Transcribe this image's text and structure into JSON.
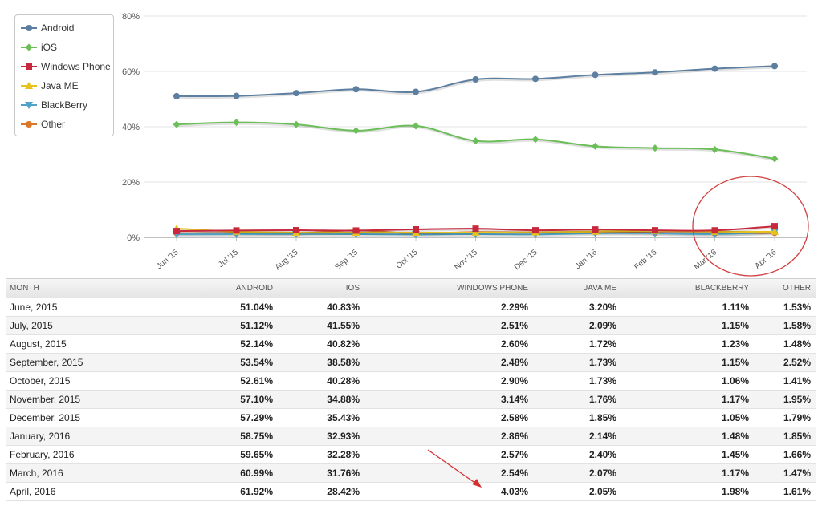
{
  "chart_data": {
    "type": "line",
    "title": "",
    "xlabel": "",
    "ylabel": "",
    "ylim": [
      0,
      80
    ],
    "y_ticks": [
      "0%",
      "20%",
      "40%",
      "60%",
      "80%"
    ],
    "categories": [
      "Jun '15",
      "Jul '15",
      "Aug '15",
      "Sep '15",
      "Oct '15",
      "Nov '15",
      "Dec '15",
      "Jan '16",
      "Feb '16",
      "Mar '16",
      "Apr '16"
    ],
    "grid": true,
    "legend_placement": "top-left",
    "series": [
      {
        "name": "Android",
        "color": "#5c7fa1",
        "marker": "circle",
        "values": [
          51.04,
          51.12,
          52.14,
          53.54,
          52.61,
          57.1,
          57.29,
          58.75,
          59.65,
          60.99,
          61.92
        ]
      },
      {
        "name": "iOS",
        "color": "#6cbf58",
        "marker": "diamond",
        "values": [
          40.83,
          41.55,
          40.82,
          38.58,
          40.28,
          34.88,
          35.43,
          32.93,
          32.28,
          31.76,
          28.42
        ]
      },
      {
        "name": "Windows Phone",
        "color": "#c8283c",
        "marker": "square",
        "values": [
          2.29,
          2.51,
          2.6,
          2.48,
          2.9,
          3.14,
          2.58,
          2.86,
          2.57,
          2.54,
          4.03
        ]
      },
      {
        "name": "Java ME",
        "color": "#e8c21e",
        "marker": "triangle",
        "values": [
          3.2,
          2.09,
          1.72,
          1.73,
          1.73,
          1.76,
          1.85,
          2.14,
          2.4,
          2.07,
          2.05
        ]
      },
      {
        "name": "BlackBerry",
        "color": "#4fa3c8",
        "marker": "triangle-down",
        "values": [
          1.11,
          1.15,
          1.23,
          1.15,
          1.06,
          1.17,
          1.05,
          1.48,
          1.45,
          1.17,
          1.98
        ]
      },
      {
        "name": "Other",
        "color": "#d9782a",
        "marker": "circle",
        "values": [
          1.53,
          1.58,
          1.48,
          2.52,
          1.41,
          1.95,
          1.79,
          1.85,
          1.66,
          1.47,
          1.61
        ]
      }
    ]
  },
  "table": {
    "headers": [
      "MONTH",
      "ANDROID",
      "IOS",
      "WINDOWS PHONE",
      "JAVA ME",
      "BLACKBERRY",
      "OTHER"
    ],
    "rows": [
      [
        "June, 2015",
        "51.04%",
        "40.83%",
        "2.29%",
        "3.20%",
        "1.11%",
        "1.53%"
      ],
      [
        "July, 2015",
        "51.12%",
        "41.55%",
        "2.51%",
        "2.09%",
        "1.15%",
        "1.58%"
      ],
      [
        "August, 2015",
        "52.14%",
        "40.82%",
        "2.60%",
        "1.72%",
        "1.23%",
        "1.48%"
      ],
      [
        "September, 2015",
        "53.54%",
        "38.58%",
        "2.48%",
        "1.73%",
        "1.15%",
        "2.52%"
      ],
      [
        "October, 2015",
        "52.61%",
        "40.28%",
        "2.90%",
        "1.73%",
        "1.06%",
        "1.41%"
      ],
      [
        "November, 2015",
        "57.10%",
        "34.88%",
        "3.14%",
        "1.76%",
        "1.17%",
        "1.95%"
      ],
      [
        "December, 2015",
        "57.29%",
        "35.43%",
        "2.58%",
        "1.85%",
        "1.05%",
        "1.79%"
      ],
      [
        "January, 2016",
        "58.75%",
        "32.93%",
        "2.86%",
        "2.14%",
        "1.48%",
        "1.85%"
      ],
      [
        "February, 2016",
        "59.65%",
        "32.28%",
        "2.57%",
        "2.40%",
        "1.45%",
        "1.66%"
      ],
      [
        "March, 2016",
        "60.99%",
        "31.76%",
        "2.54%",
        "2.07%",
        "1.17%",
        "1.47%"
      ],
      [
        "April, 2016",
        "61.92%",
        "28.42%",
        "4.03%",
        "2.05%",
        "1.98%",
        "1.61%"
      ]
    ]
  },
  "annotations": {
    "circle_color": "#d04040",
    "arrow_color": "#d43030"
  }
}
